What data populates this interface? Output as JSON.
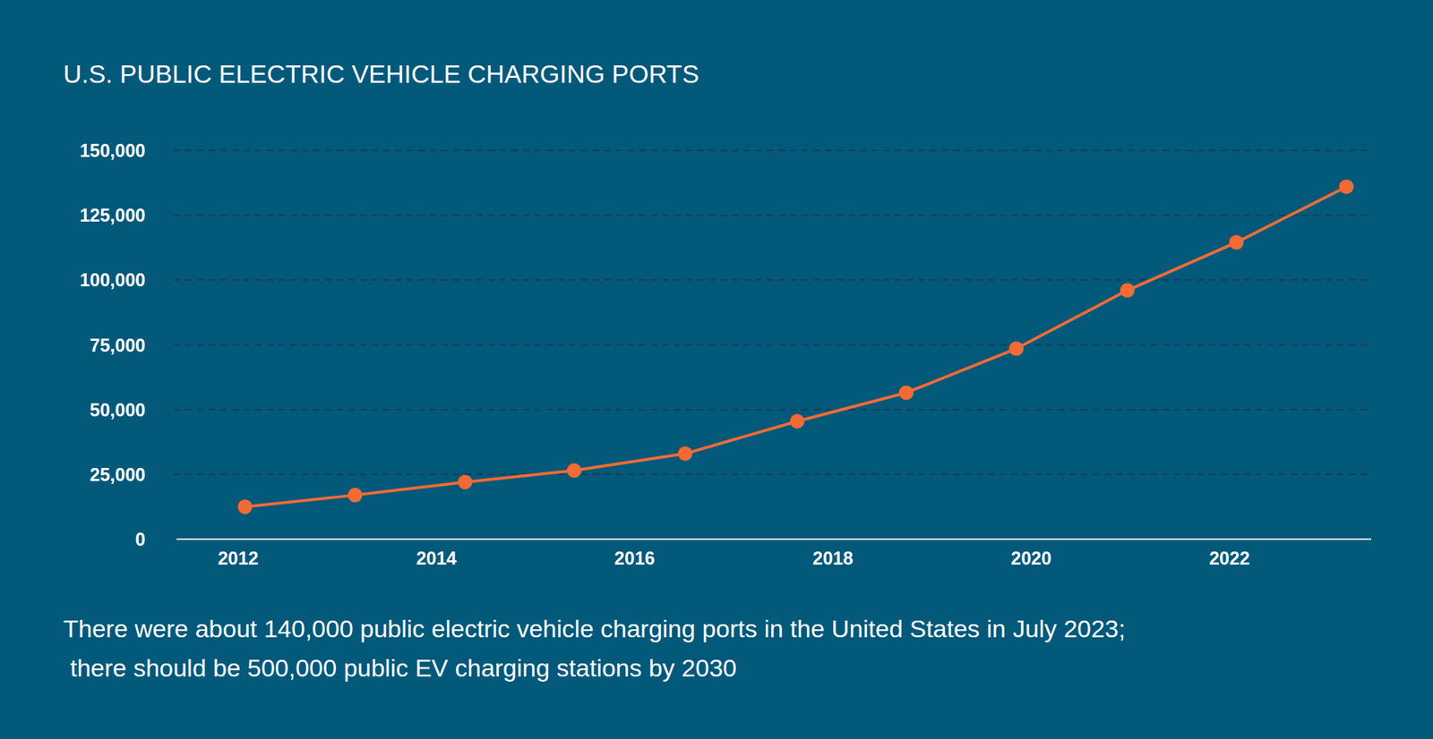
{
  "chart_data": {
    "type": "line",
    "title": "U.S. PUBLIC ELECTRIC VEHICLE CHARGING PORTS",
    "subtitle": "There were about 140,000 public electric vehicle charging ports in the United States in July 2023; there should be 500,000 public EV charging stations by 2030",
    "x": [
      2012.07,
      2013.18,
      2014.29,
      2015.39,
      2016.51,
      2017.64,
      2018.74,
      2019.85,
      2020.97,
      2022.07,
      2023.18
    ],
    "values": [
      12500,
      17000,
      22000,
      26500,
      33000,
      45500,
      56500,
      73500,
      96000,
      114500,
      136000
    ],
    "color": "#f26b35",
    "marker": "circle",
    "xlim": [
      2011.38,
      2023.43
    ],
    "xticks": [
      2012,
      2014,
      2016,
      2018,
      2020,
      2022
    ],
    "ylim": [
      0,
      150000
    ],
    "yticks": [
      0,
      {
        "value": 25000,
        "label": "25,000"
      },
      {
        "value": 50000,
        "label": "50,000"
      },
      {
        "value": 75000,
        "label": "75,000"
      },
      {
        "value": 100000,
        "label": "100,000"
      },
      {
        "value": 125000,
        "label": "125,000"
      },
      {
        "value": 150000,
        "label": "150,000"
      }
    ],
    "grid": true
  }
}
